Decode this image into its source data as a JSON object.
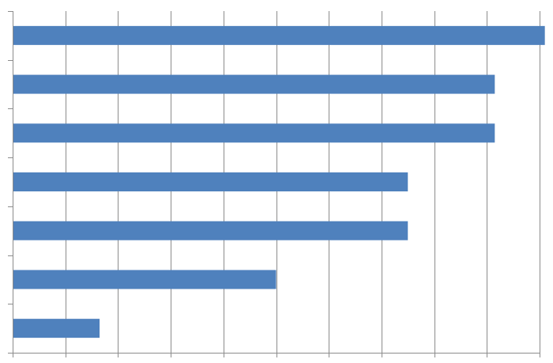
{
  "chart_data": {
    "type": "bar",
    "orientation": "horizontal",
    "categories": [
      "",
      "",
      "",
      "",
      "",
      "",
      ""
    ],
    "values": [
      10.1,
      9.15,
      9.15,
      7.5,
      7.5,
      5.0,
      1.65
    ],
    "xlim": [
      0,
      10
    ],
    "x_ticks": [
      0,
      1,
      2,
      3,
      4,
      5,
      6,
      7,
      8,
      9,
      10
    ],
    "title": "",
    "xlabel": "",
    "ylabel": "",
    "grid": "vertical",
    "legend": "none",
    "colors": {
      "bar": "#4f81bd",
      "grid": "#8c8c8c",
      "axis": "#8c8c8c",
      "background": "#ffffff"
    }
  }
}
